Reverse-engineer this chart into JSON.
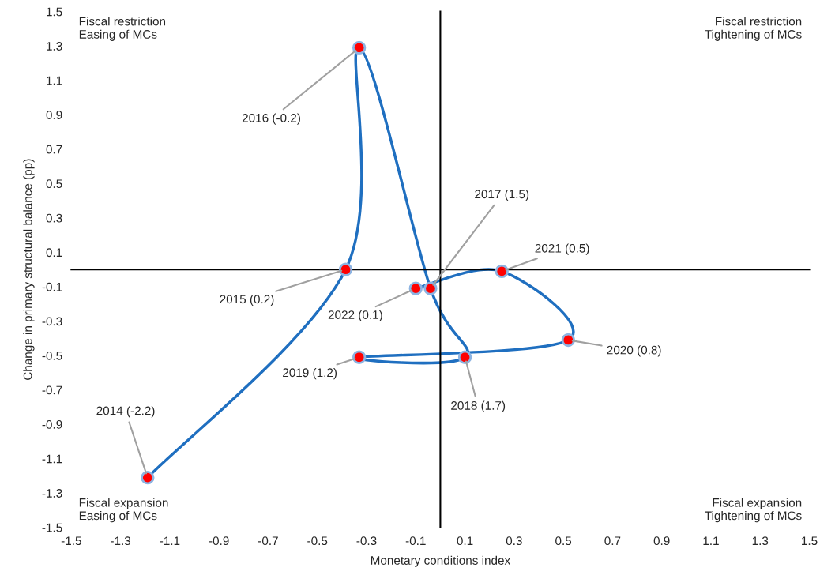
{
  "chart_data": {
    "type": "line",
    "xlabel": "Monetary conditions index",
    "ylabel": "Change in primary structural balance (pp)",
    "series": [
      {
        "color": "#1f6fc0",
        "x": [
          -1.19,
          -0.385,
          -0.33,
          -0.04,
          0.1,
          -0.33,
          0.52,
          0.25,
          -0.1
        ],
        "values": [
          -1.21,
          0.0,
          1.29,
          -0.11,
          -0.51,
          -0.51,
          -0.41,
          -0.01,
          -0.11
        ]
      }
    ],
    "marker": "circle",
    "line_style": "solid",
    "xlim": [
      -1.5,
      1.5
    ],
    "ylim": [
      -1.5,
      1.5
    ],
    "xticks": [
      -1.5,
      -1.3,
      -1.1,
      -0.9,
      -0.7,
      -0.5,
      -0.3,
      -0.1,
      0.1,
      0.3,
      0.5,
      0.7,
      0.9,
      1.1,
      1.3,
      1.5
    ],
    "yticks": [
      -1.5,
      -1.3,
      -1.1,
      -0.9,
      -0.7,
      -0.5,
      -0.3,
      -0.1,
      0.1,
      0.3,
      0.5,
      0.7,
      0.9,
      1.1,
      1.3,
      1.5
    ],
    "grid": false,
    "annotations": [
      {
        "text": "2014 (-2.2)",
        "x": -1.19,
        "y": -1.21
      },
      {
        "text": "2015 (0.2)",
        "x": -0.385,
        "y": 0.0
      },
      {
        "text": "2016 (-0.2)",
        "x": -0.33,
        "y": 1.29
      },
      {
        "text": "2017 (1.5)",
        "x": -0.04,
        "y": -0.11
      },
      {
        "text": "2018 (1.7)",
        "x": 0.1,
        "y": -0.51
      },
      {
        "text": "2019 (1.2)",
        "x": -0.33,
        "y": -0.51
      },
      {
        "text": "2020 (0.8)",
        "x": 0.52,
        "y": -0.41
      },
      {
        "text": "2021 (0.5)",
        "x": 0.25,
        "y": -0.01
      },
      {
        "text": "2022 (0.1)",
        "x": -0.1,
        "y": -0.11
      },
      "Fiscal restriction\nEasing of MCs",
      "Fiscal restriction\nTightening of MCs",
      "Fiscal expansion\nEasing of MCs",
      "Fiscal expansion\nTightening of MCs"
    ]
  }
}
